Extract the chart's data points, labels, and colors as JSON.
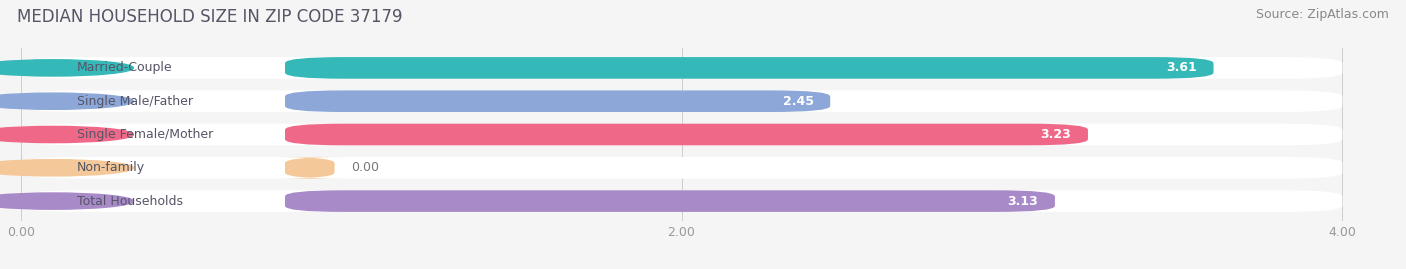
{
  "title": "MEDIAN HOUSEHOLD SIZE IN ZIP CODE 37179",
  "source": "Source: ZipAtlas.com",
  "categories": [
    "Married-Couple",
    "Single Male/Father",
    "Single Female/Mother",
    "Non-family",
    "Total Households"
  ],
  "values": [
    3.61,
    2.45,
    3.23,
    0.0,
    3.13
  ],
  "bar_colors": [
    "#35b8b8",
    "#8da8d8",
    "#f06888",
    "#f5c89a",
    "#a98ac8"
  ],
  "xlim": [
    0,
    4.0
  ],
  "xticks": [
    0.0,
    2.0,
    4.0
  ],
  "xtick_labels": [
    "0.00",
    "2.00",
    "4.00"
  ],
  "background_color": "#f5f5f5",
  "bar_bg_color": "#e8e8ec",
  "title_color": "#555566",
  "source_color": "#888888",
  "label_color": "#555566",
  "title_fontsize": 12,
  "source_fontsize": 9,
  "label_fontsize": 9,
  "value_fontsize": 9,
  "bar_height": 0.65,
  "bar_gap": 0.35
}
